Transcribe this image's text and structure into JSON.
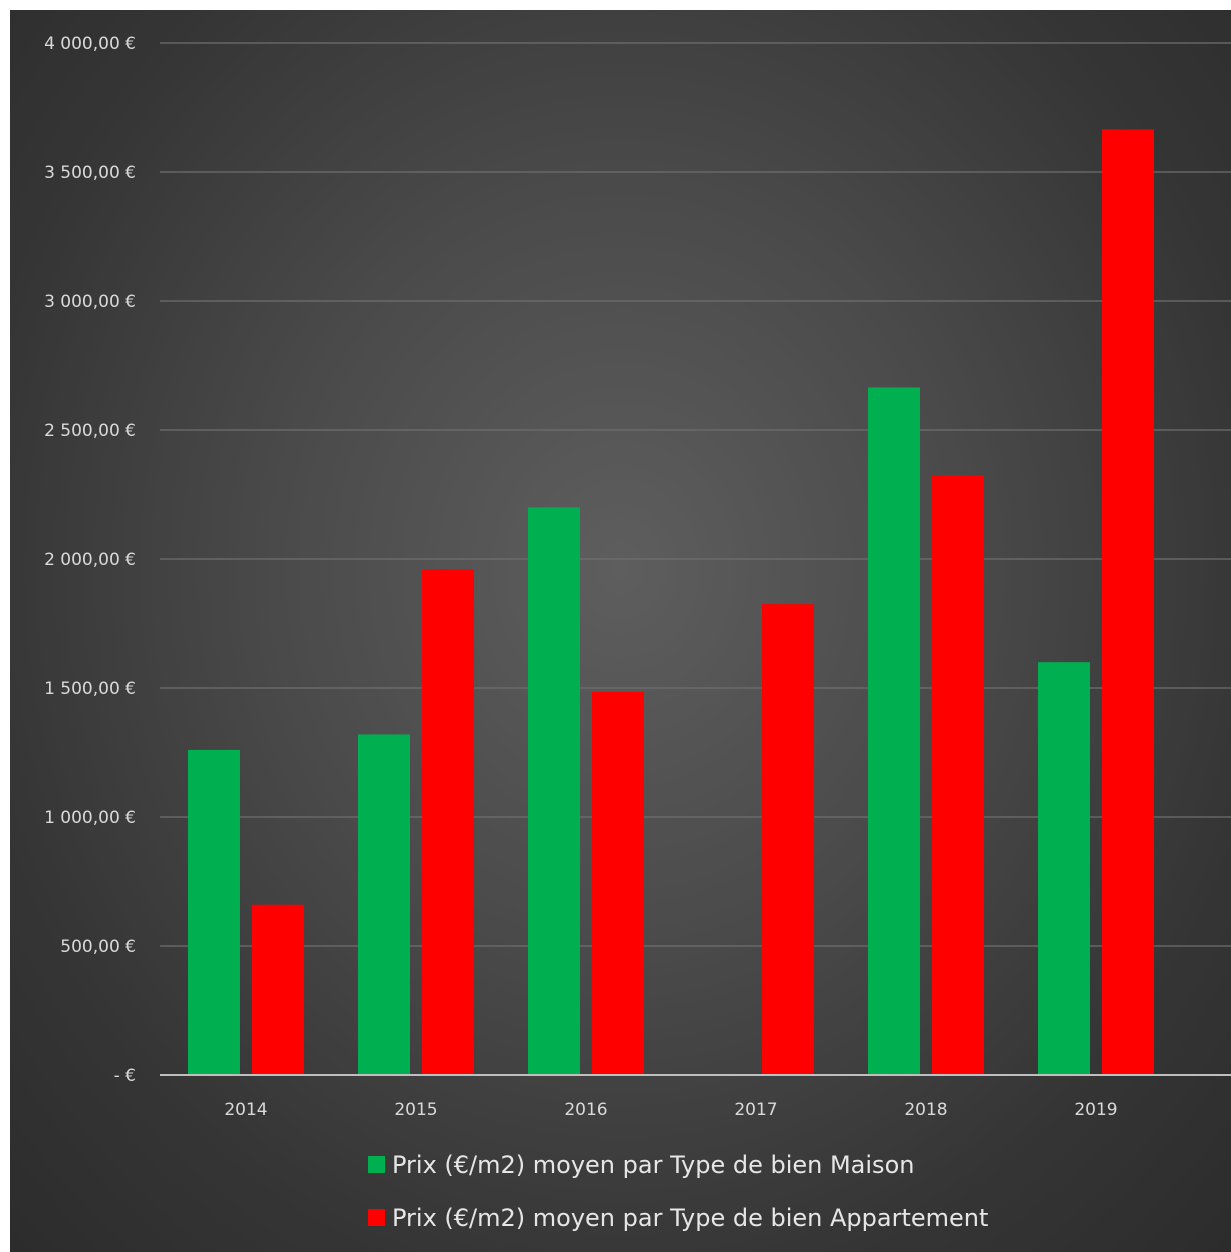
{
  "chart_data": {
    "type": "bar",
    "categories": [
      "2014",
      "2015",
      "2016",
      "2017",
      "2018",
      "2019"
    ],
    "series": [
      {
        "name": "Prix (€/m2) moyen par Type de bien Maison",
        "color": "#00b050",
        "values": [
          1260,
          1320,
          2200,
          null,
          2665,
          1600
        ]
      },
      {
        "name": "Prix (€/m2) moyen par Type de bien Appartement",
        "color": "#ff0000",
        "values": [
          660,
          1960,
          1485,
          1825,
          2325,
          3665
        ]
      }
    ],
    "ylim": [
      0,
      4000
    ],
    "yticks": [
      0,
      500,
      1000,
      1500,
      2000,
      2500,
      3000,
      3500,
      4000
    ],
    "ytick_labels": [
      "-   €",
      "500,00 €",
      "1 000,00 €",
      "1 500,00 €",
      "2 000,00 €",
      "2 500,00 €",
      "3 000,00 €",
      "3 500,00 €",
      "4 000,00 €"
    ],
    "grid": true,
    "legend_position": "bottom"
  }
}
